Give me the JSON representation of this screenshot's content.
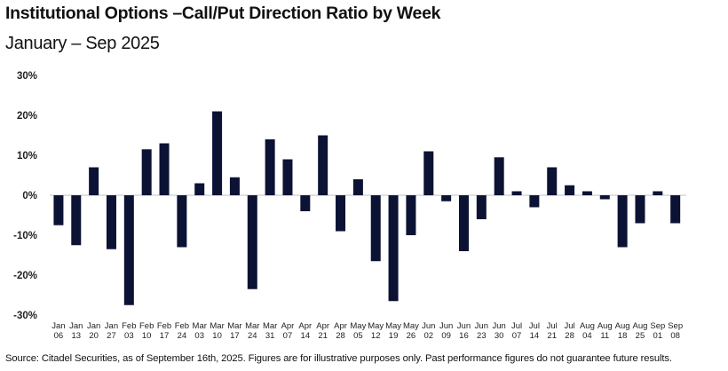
{
  "chart_data": {
    "type": "bar",
    "title": "Institutional Options –Call/Put Direction Ratio by Week",
    "subtitle": "January – Sep 2025",
    "ylim": [
      -30,
      30
    ],
    "yticks": [
      -30,
      -20,
      -10,
      0,
      10,
      20,
      30
    ],
    "ytick_labels": [
      "-30%",
      "-20%",
      "-10%",
      "0%",
      "10%",
      "20%",
      "30%"
    ],
    "categories": [
      [
        "Jan",
        "06"
      ],
      [
        "Jan",
        "13"
      ],
      [
        "Jan",
        "20"
      ],
      [
        "Jan",
        "27"
      ],
      [
        "Feb",
        "03"
      ],
      [
        "Feb",
        "10"
      ],
      [
        "Feb",
        "17"
      ],
      [
        "Feb",
        "24"
      ],
      [
        "Mar",
        "03"
      ],
      [
        "Mar",
        "10"
      ],
      [
        "Mar",
        "17"
      ],
      [
        "Mar",
        "24"
      ],
      [
        "Mar",
        "31"
      ],
      [
        "Apr",
        "07"
      ],
      [
        "Apr",
        "14"
      ],
      [
        "Apr",
        "21"
      ],
      [
        "Apr",
        "28"
      ],
      [
        "May",
        "05"
      ],
      [
        "May",
        "12"
      ],
      [
        "May",
        "19"
      ],
      [
        "May",
        "26"
      ],
      [
        "Jun",
        "02"
      ],
      [
        "Jun",
        "09"
      ],
      [
        "Jun",
        "16"
      ],
      [
        "Jun",
        "23"
      ],
      [
        "Jun",
        "30"
      ],
      [
        "Jul",
        "07"
      ],
      [
        "Jul",
        "14"
      ],
      [
        "Jul",
        "21"
      ],
      [
        "Jul",
        "28"
      ],
      [
        "Aug",
        "04"
      ],
      [
        "Aug",
        "11"
      ],
      [
        "Aug",
        "18"
      ],
      [
        "Aug",
        "25"
      ],
      [
        "Sep",
        "01"
      ],
      [
        "Sep",
        "08"
      ]
    ],
    "values": [
      -7.5,
      -12.5,
      7,
      -13.5,
      -27.5,
      11.5,
      13,
      -13,
      3,
      21,
      4.5,
      -23.5,
      14,
      9,
      -4,
      15,
      -9,
      4,
      -16.5,
      -26.5,
      -10,
      11,
      -1.5,
      -14,
      -6,
      9.5,
      1,
      -3,
      7,
      2.5,
      1,
      -1,
      -13,
      -7,
      1,
      -7
    ],
    "bar_color": "#0b1233",
    "axis_color": "#bfc2c8",
    "xlabel": "",
    "ylabel": ""
  },
  "footer": {
    "source": "Source: Citadel Securities, as of September 16th, 2025. Figures are for illustrative purposes only. Past performance figures do not guarantee future results."
  }
}
